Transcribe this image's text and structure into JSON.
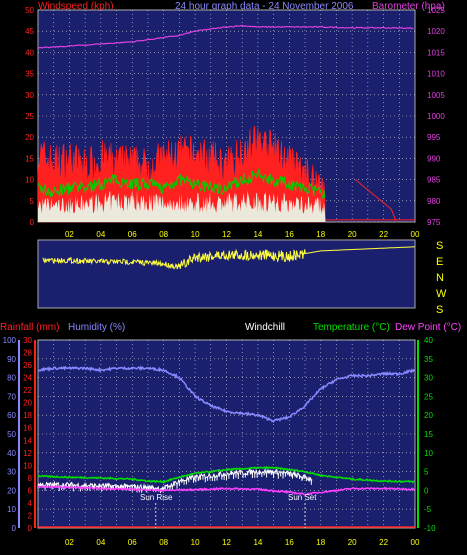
{
  "colors": {
    "background": "#000000",
    "plot_fill": "#1a1f6e",
    "grid": "#d8d8d8",
    "axis_tick_labels": "#ffff00",
    "windspeed": "#ff2020",
    "wind_avg": "#00d000",
    "gust_fill": "#e8fff0",
    "barometer": "#e040e0",
    "wind_direction": "#ffff40",
    "rainfall": "#ff2020",
    "humidity": "#8888ff",
    "windchill": "#ffffff",
    "temperature": "#00e000",
    "dew_point": "#ff40ff"
  },
  "header": {
    "windspeed_label": "Windspeed (kph)",
    "title": "24 hour graph data - 24 November 2006",
    "barometer_label": "Barometer (hpa)"
  },
  "lower_header": {
    "rainfall": "Rainfall (mm)",
    "humidity": "Humidity (%)",
    "windchill": "Windchill",
    "temperature": "Temperature (°C)",
    "dew_point": "Dew Point (°C)"
  },
  "markers": {
    "sunrise": "Sun Rise",
    "sunset": "Sun Set"
  },
  "compass": [
    "S",
    "E",
    "N",
    "W",
    "S"
  ],
  "chart_data": [
    {
      "type": "area",
      "title": "24 hour graph data - 24 November 2006",
      "ylabel": "Windspeed (kph)",
      "y2label": "Barometer (hpa)",
      "ylim": [
        0,
        50
      ],
      "y2lim": [
        975,
        1025
      ],
      "yticks": [
        0,
        5,
        10,
        15,
        20,
        25,
        30,
        35,
        40,
        45,
        50
      ],
      "y2ticks": [
        975,
        980,
        985,
        990,
        995,
        1000,
        1005,
        1010,
        1015,
        1020,
        1025
      ],
      "xlim": [
        0,
        24
      ],
      "xticks": [
        "02",
        "04",
        "06",
        "08",
        "10",
        "12",
        "14",
        "16",
        "18",
        "20",
        "22",
        "00"
      ],
      "series": [
        {
          "name": "Windspeed (kph)",
          "x": [
            0,
            1,
            2,
            3,
            4,
            5,
            6,
            7,
            8,
            9,
            10,
            11,
            12,
            13,
            14,
            15,
            16,
            17,
            18,
            18.3
          ],
          "values": [
            16,
            14,
            15,
            13,
            15,
            14,
            14,
            13,
            15,
            16,
            16,
            15,
            13,
            17,
            19,
            17,
            14,
            11,
            9,
            9
          ]
        },
        {
          "x": [
            0,
            1,
            2,
            3,
            4,
            5,
            6,
            7,
            8,
            9,
            10,
            11,
            12,
            13,
            14,
            15,
            16,
            17,
            18,
            18.3
          ],
          "values": [
            8,
            7,
            8,
            8,
            9,
            10,
            9,
            9,
            8,
            10,
            9,
            8,
            8,
            10,
            11,
            10,
            9,
            8,
            7,
            7
          ]
        },
        {
          "x": [
            0,
            2,
            4,
            6,
            8,
            10,
            12,
            14,
            16,
            18,
            18.3
          ],
          "values": [
            6,
            6,
            7,
            8,
            7,
            7,
            7,
            8,
            7,
            6,
            5
          ]
        },
        {
          "name": "Barometer (hpa)",
          "x": [
            0,
            2,
            4,
            6,
            8,
            9,
            10,
            11,
            12,
            13,
            14,
            16,
            18,
            20,
            22,
            24
          ],
          "values": [
            1016,
            1016.5,
            1017,
            1017.5,
            1018.5,
            1019,
            1020,
            1020.5,
            1021,
            1021.3,
            1021,
            1021,
            1021,
            1020.8,
            1020.8,
            1020.7
          ]
        },
        {
          "x": [
            20.2,
            22.5,
            22.8
          ],
          "values": [
            10,
            3,
            0
          ]
        }
      ]
    },
    {
      "type": "line",
      "xlim": [
        0,
        24
      ],
      "xticks": [
        "02",
        "04",
        "06",
        "08",
        "10",
        "12",
        "14",
        "16",
        "18",
        "20",
        "22",
        "00"
      ],
      "series": [
        {
          "x": [
            0,
            2,
            4,
            6,
            8,
            9,
            10,
            12,
            14,
            16,
            17,
            18,
            20,
            22,
            24
          ],
          "values": [
            0.3,
            0.3,
            0.32,
            0.32,
            0.35,
            0.4,
            0.25,
            0.22,
            0.22,
            0.24,
            0.2,
            0.16,
            0.14,
            0.12,
            0.1
          ]
        }
      ]
    },
    {
      "type": "line",
      "y_axes": [
        {
          "label": "Rainfall (mm)",
          "ticks": [
            0,
            2,
            4,
            6,
            8,
            10,
            12,
            14,
            16,
            18,
            20,
            22,
            24,
            26,
            28,
            30
          ]
        },
        {
          "label": "Humidity (%)",
          "ticks": [
            0,
            10,
            20,
            30,
            40,
            50,
            60,
            70,
            80,
            90,
            100
          ]
        },
        {
          "label": "Temperature (°C)",
          "ticks": [
            -10,
            -5,
            0,
            5,
            10,
            15,
            20,
            25,
            30,
            35,
            40
          ]
        }
      ],
      "xlim": [
        0,
        24
      ],
      "xticks": [
        "02",
        "04",
        "06",
        "08",
        "10",
        "12",
        "14",
        "16",
        "18",
        "20",
        "22",
        "00"
      ],
      "annotations": [
        {
          "label": "Sun Rise",
          "x": 7.5
        },
        {
          "label": "Sun Set",
          "x": 17
        }
      ],
      "series": [
        {
          "name": "Humidity (%)",
          "x": [
            0,
            1,
            2,
            3,
            4,
            5,
            6,
            7,
            8,
            9,
            10,
            11,
            12,
            13,
            14,
            15,
            16,
            17,
            18,
            19,
            20,
            21,
            22,
            23,
            24
          ],
          "values": [
            84,
            85,
            85,
            85,
            84,
            85,
            85,
            85,
            84,
            80,
            70,
            65,
            62,
            61,
            60,
            57,
            59,
            65,
            74,
            79,
            81,
            81,
            82,
            82,
            84
          ]
        },
        {
          "name": "Temperature (°C)",
          "x": [
            0,
            2,
            4,
            6,
            7,
            8,
            9,
            10,
            12,
            14,
            15,
            16,
            17,
            18,
            19,
            20,
            22,
            24
          ],
          "values": [
            3.8,
            3.5,
            3.3,
            3,
            2.5,
            2.3,
            3.5,
            4.5,
            5.5,
            6,
            6,
            5.5,
            5,
            4,
            3.5,
            3,
            2.5,
            2.3
          ]
        },
        {
          "name": "Windchill",
          "x": [
            0,
            2,
            4,
            6,
            7,
            8,
            9,
            10,
            12,
            14,
            15,
            16,
            17,
            17.5
          ],
          "values": [
            1.5,
            1.5,
            1.2,
            1,
            0.8,
            0.5,
            2.5,
            3.5,
            4.5,
            5,
            5,
            4.5,
            3.5,
            3
          ]
        },
        {
          "name": "Dew Point (°C)",
          "x": [
            0,
            2,
            4,
            6,
            8,
            10,
            12,
            14,
            16,
            17,
            18,
            20,
            22,
            24
          ],
          "values": [
            1,
            0.8,
            0.5,
            0.3,
            0,
            0.2,
            0.5,
            0.3,
            -0.5,
            -1,
            -0.5,
            0.5,
            0.5,
            0.3
          ]
        },
        {
          "name": "Rainfall (mm)",
          "x": [
            0,
            24
          ],
          "values": [
            0,
            0
          ]
        }
      ]
    }
  ]
}
